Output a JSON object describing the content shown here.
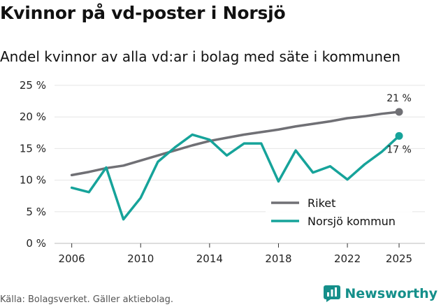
{
  "title": "Kvinnor på vd-poster i Norsjö",
  "subtitle": "Andel kvinnor av alla vd:ar i bolag med säte i kommunen",
  "source": "Källa: Bolagsverket. Gäller aktiebolag.",
  "brand": "Newsworthy",
  "colors": {
    "riket": "#707075",
    "norsjo": "#16a39a",
    "grid": "#e6e6e6",
    "brand": "#148f8a"
  },
  "chart_data": {
    "type": "line",
    "title": "Kvinnor på vd-poster i Norsjö",
    "xlabel": "",
    "ylabel": "",
    "x": [
      2006,
      2007,
      2008,
      2009,
      2010,
      2011,
      2012,
      2013,
      2014,
      2015,
      2016,
      2017,
      2018,
      2019,
      2020,
      2021,
      2022,
      2023,
      2024,
      2025
    ],
    "xticks": [
      2006,
      2010,
      2014,
      2018,
      2022,
      2025
    ],
    "xtick_labels": [
      "2006",
      "2010",
      "2014",
      "2018",
      "2022",
      "2025"
    ],
    "ylim": [
      0,
      25
    ],
    "yticks": [
      0,
      5,
      10,
      15,
      20,
      25
    ],
    "ytick_labels": [
      "0 %",
      "5 %",
      "10 %",
      "15 %",
      "20 %",
      "25 %"
    ],
    "grid": true,
    "legend_position": "bottom-right",
    "series": [
      {
        "name": "Riket",
        "values": [
          10.8,
          11.3,
          11.9,
          12.3,
          13.1,
          13.9,
          14.7,
          15.5,
          16.2,
          16.7,
          17.2,
          17.6,
          18.0,
          18.5,
          18.9,
          19.3,
          19.8,
          20.1,
          20.5,
          20.8
        ],
        "end_label": "21 %"
      },
      {
        "name": "Norsjö kommun",
        "values": [
          8.8,
          8.1,
          12.0,
          3.8,
          7.2,
          12.9,
          15.2,
          17.2,
          16.4,
          13.9,
          15.8,
          15.8,
          9.8,
          14.7,
          11.2,
          12.2,
          10.1,
          12.5,
          14.5,
          17.0
        ],
        "end_label": "17 %"
      }
    ]
  }
}
